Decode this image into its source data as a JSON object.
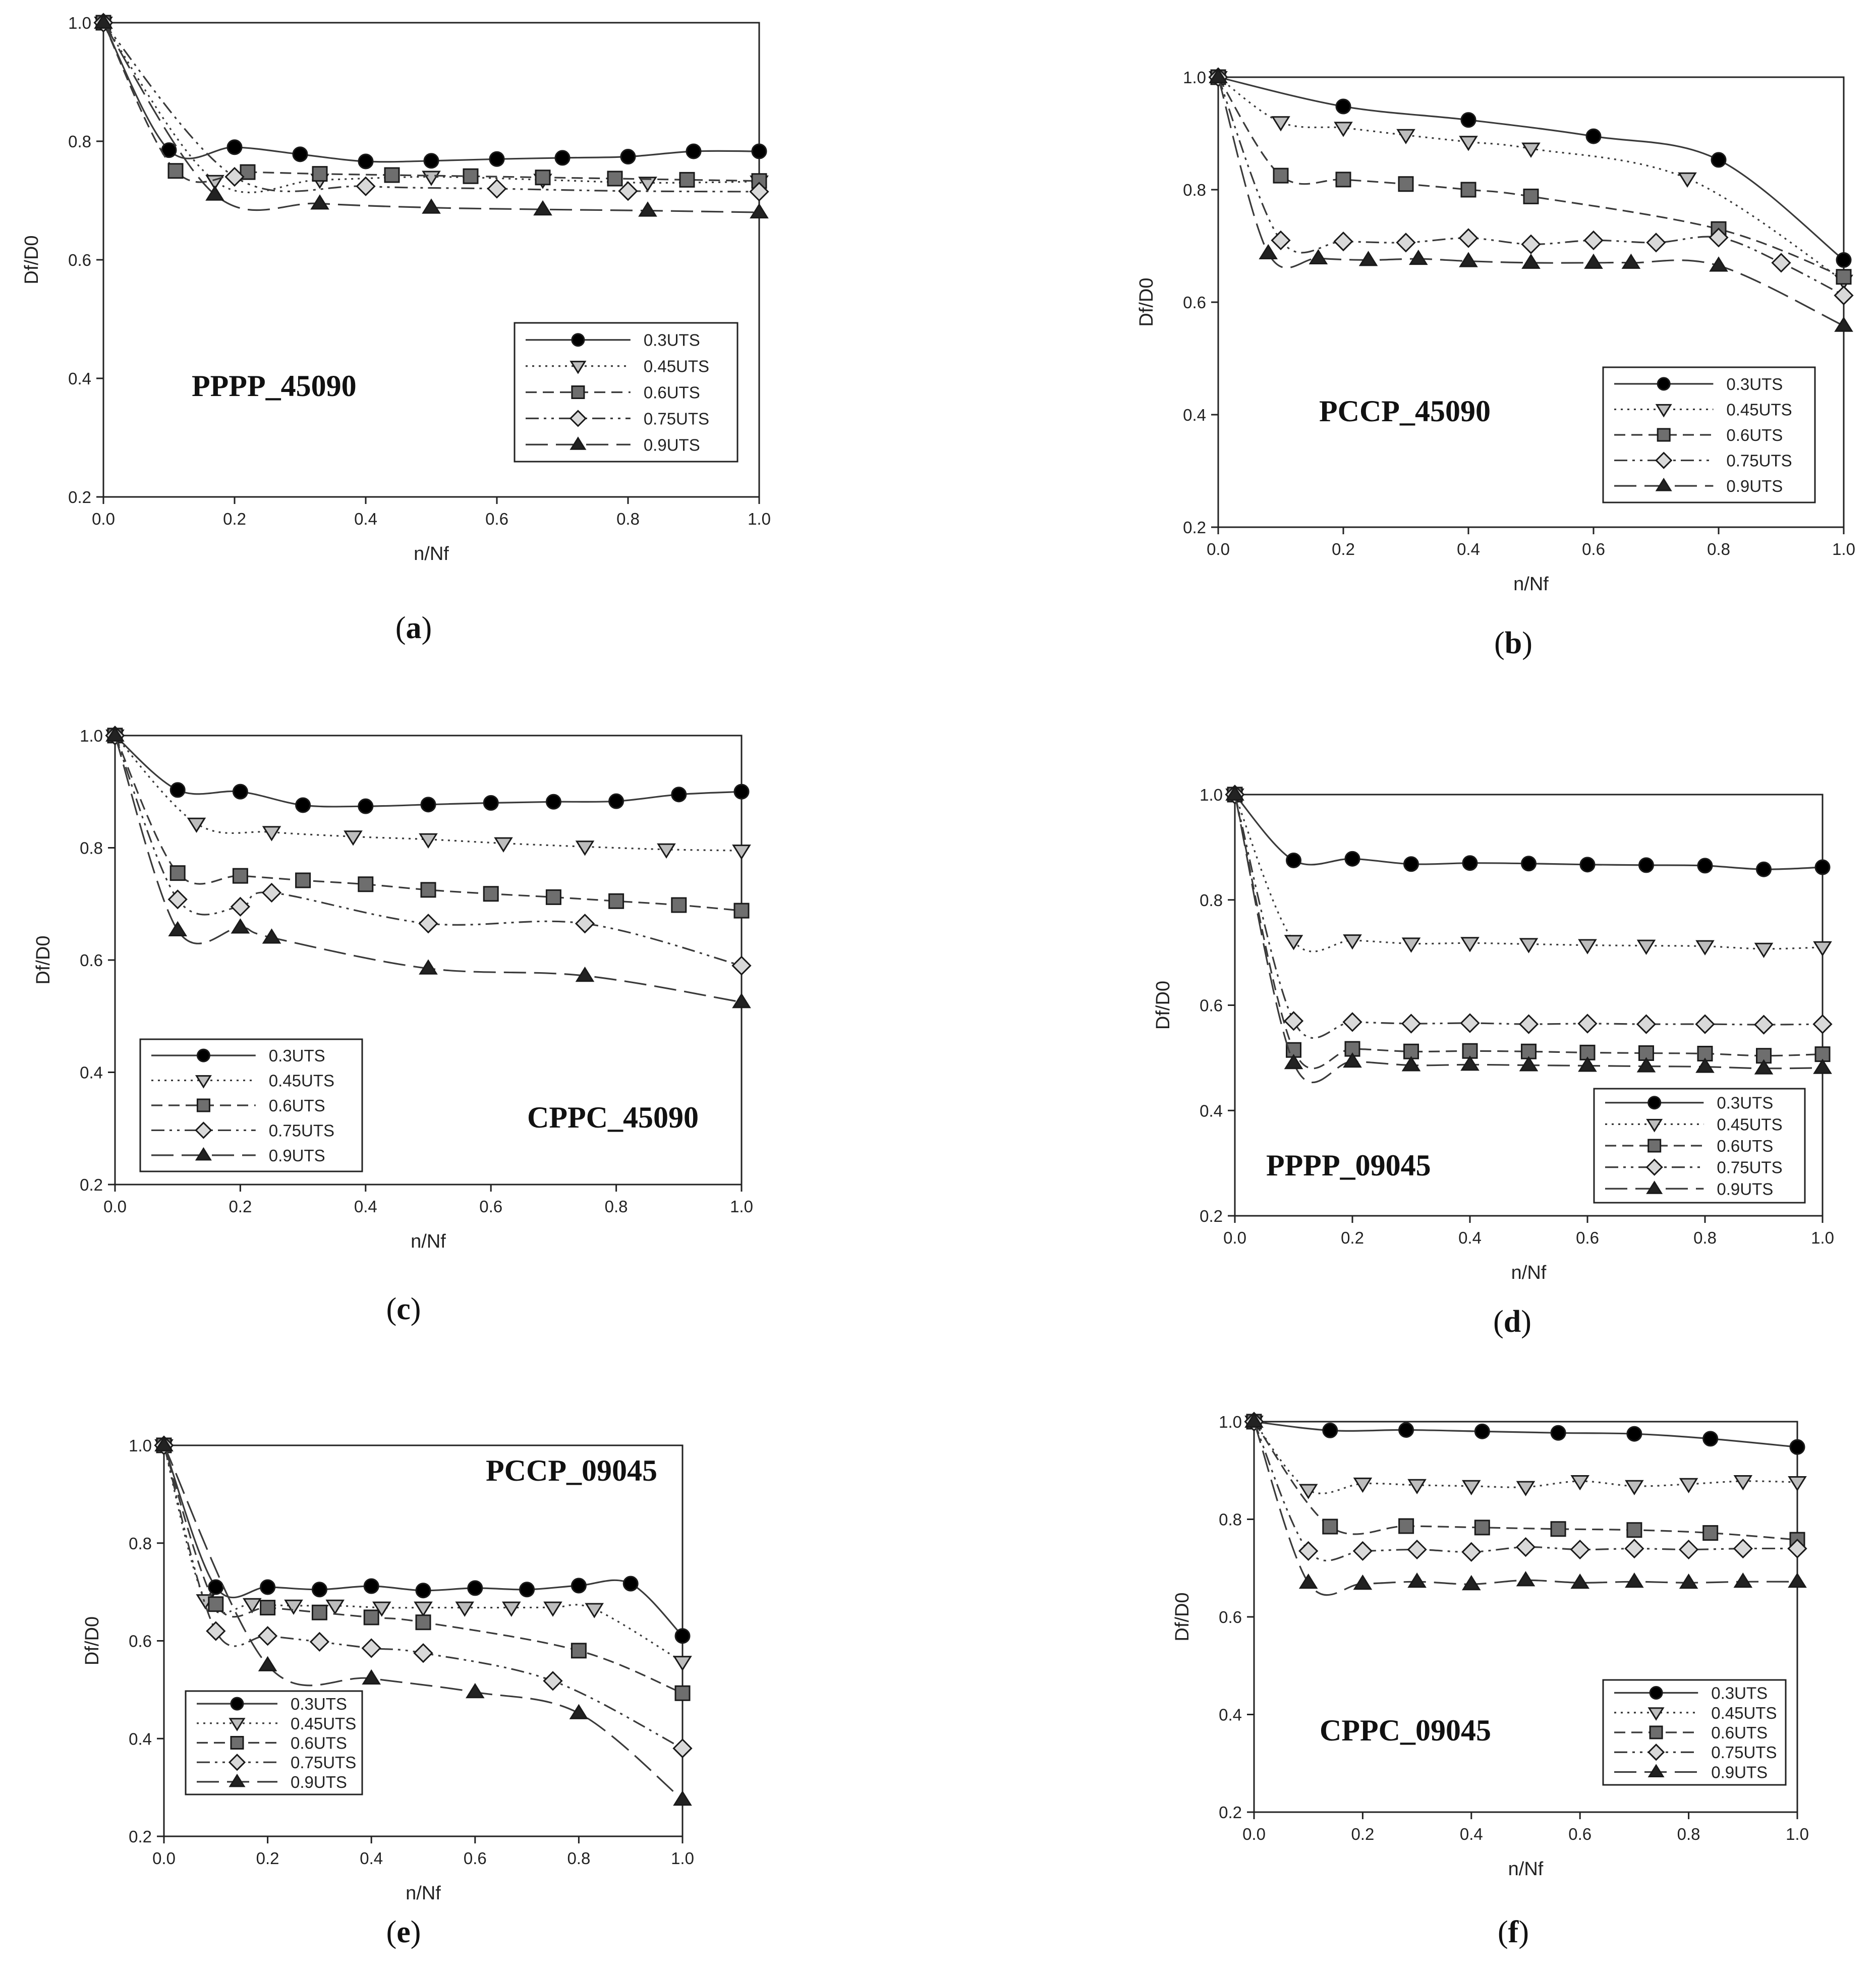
{
  "chart_data": [
    {
      "type": "line",
      "panel": "a",
      "caption": "a",
      "title": "PPPP_45090",
      "xlabel": "n/Nf",
      "ylabel": "Df/D0",
      "xlim": [
        0.0,
        1.0
      ],
      "ylim": [
        0.2,
        1.0
      ],
      "xticks": [
        "0.0",
        "0.2",
        "0.4",
        "0.6",
        "0.8",
        "1.0"
      ],
      "yticks": [
        "0.2",
        "0.4",
        "0.6",
        "0.8",
        "1.0"
      ],
      "legend_position": "right, middle",
      "title_position": "left, middle",
      "series": [
        {
          "name": "0.3UTS",
          "x": [
            0,
            0.1,
            0.2,
            0.3,
            0.4,
            0.5,
            0.6,
            0.7,
            0.8,
            0.9,
            1.0
          ],
          "y": [
            1.0,
            0.785,
            0.79,
            0.778,
            0.766,
            0.767,
            0.77,
            0.772,
            0.774,
            0.783,
            0.783
          ]
        },
        {
          "name": "0.45UTS",
          "x": [
            0,
            0.17,
            0.33,
            0.5,
            0.67,
            0.83,
            1.0
          ],
          "y": [
            1.0,
            0.733,
            0.735,
            0.74,
            0.735,
            0.73,
            0.732
          ]
        },
        {
          "name": "0.6UTS",
          "x": [
            0,
            0.11,
            0.22,
            0.33,
            0.44,
            0.56,
            0.67,
            0.78,
            0.89,
            1.0
          ],
          "y": [
            1.0,
            0.75,
            0.748,
            0.745,
            0.743,
            0.741,
            0.739,
            0.737,
            0.735,
            0.733
          ]
        },
        {
          "name": "0.75UTS",
          "x": [
            0,
            0.2,
            0.4,
            0.6,
            0.8,
            1.0
          ],
          "y": [
            1.0,
            0.74,
            0.724,
            0.72,
            0.716,
            0.715
          ]
        },
        {
          "name": "0.9UTS",
          "x": [
            0,
            0.17,
            0.33,
            0.5,
            0.67,
            0.83,
            1.0
          ],
          "y": [
            1.0,
            0.71,
            0.695,
            0.688,
            0.685,
            0.683,
            0.68
          ]
        }
      ]
    },
    {
      "type": "line",
      "panel": "b",
      "caption": "b",
      "title": "PCCP_45090",
      "xlabel": "n/Nf",
      "ylabel": "Df/D0",
      "xlim": [
        0.0,
        1.0
      ],
      "ylim": [
        0.2,
        1.0
      ],
      "xticks": [
        "0.0",
        "0.2",
        "0.4",
        "0.6",
        "0.8",
        "1.0"
      ],
      "yticks": [
        "0.2",
        "0.4",
        "0.6",
        "0.8",
        "1.0"
      ],
      "legend_position": "right, middle",
      "title_position": "left, middle",
      "series": [
        {
          "name": "0.3UTS",
          "x": [
            0,
            0.2,
            0.4,
            0.6,
            0.8,
            1.0
          ],
          "y": [
            1.0,
            0.948,
            0.924,
            0.895,
            0.853,
            0.675
          ]
        },
        {
          "name": "0.45UTS",
          "x": [
            0,
            0.1,
            0.2,
            0.3,
            0.4,
            0.5,
            0.75,
            1.0
          ],
          "y": [
            1.0,
            0.92,
            0.91,
            0.897,
            0.885,
            0.873,
            0.82,
            0.638
          ]
        },
        {
          "name": "0.6UTS",
          "x": [
            0,
            0.1,
            0.2,
            0.3,
            0.4,
            0.5,
            0.8,
            1.0
          ],
          "y": [
            1.0,
            0.825,
            0.818,
            0.81,
            0.8,
            0.788,
            0.73,
            0.645
          ]
        },
        {
          "name": "0.75UTS",
          "x": [
            0,
            0.1,
            0.2,
            0.3,
            0.4,
            0.5,
            0.6,
            0.7,
            0.8,
            0.9,
            1.0
          ],
          "y": [
            1.0,
            0.71,
            0.708,
            0.706,
            0.714,
            0.703,
            0.71,
            0.706,
            0.715,
            0.67,
            0.612
          ]
        },
        {
          "name": "0.9UTS",
          "x": [
            0,
            0.08,
            0.16,
            0.24,
            0.32,
            0.4,
            0.5,
            0.6,
            0.66,
            0.8,
            1.0
          ],
          "y": [
            1.0,
            0.687,
            0.678,
            0.675,
            0.677,
            0.673,
            0.67,
            0.67,
            0.67,
            0.665,
            0.558
          ]
        }
      ]
    },
    {
      "type": "line",
      "panel": "c",
      "caption": "c",
      "title": "CPPC_45090",
      "xlabel": "n/Nf",
      "ylabel": "Df/D0",
      "xlim": [
        0.0,
        1.0
      ],
      "ylim": [
        0.2,
        1.0
      ],
      "xticks": [
        "0.0",
        "0.2",
        "0.4",
        "0.6",
        "0.8",
        "1.0"
      ],
      "yticks": [
        "0.2",
        "0.4",
        "0.6",
        "0.8",
        "1.0"
      ],
      "legend_position": "left, bottom",
      "title_position": "right, bottom",
      "series": [
        {
          "name": "0.3UTS",
          "x": [
            0,
            0.1,
            0.2,
            0.3,
            0.4,
            0.5,
            0.6,
            0.7,
            0.8,
            0.9,
            1.0
          ],
          "y": [
            1.0,
            0.903,
            0.9,
            0.876,
            0.874,
            0.877,
            0.88,
            0.882,
            0.883,
            0.895,
            0.9
          ]
        },
        {
          "name": "0.45UTS",
          "x": [
            0,
            0.13,
            0.25,
            0.38,
            0.5,
            0.62,
            0.75,
            0.88,
            1.0
          ],
          "y": [
            1.0,
            0.843,
            0.828,
            0.82,
            0.815,
            0.808,
            0.802,
            0.797,
            0.795
          ]
        },
        {
          "name": "0.6UTS",
          "x": [
            0,
            0.1,
            0.2,
            0.3,
            0.4,
            0.5,
            0.6,
            0.7,
            0.8,
            0.9,
            1.0
          ],
          "y": [
            1.0,
            0.755,
            0.75,
            0.742,
            0.735,
            0.725,
            0.718,
            0.712,
            0.705,
            0.698,
            0.688
          ]
        },
        {
          "name": "0.75UTS",
          "x": [
            0,
            0.1,
            0.2,
            0.25,
            0.5,
            0.75,
            1.0
          ],
          "y": [
            1.0,
            0.708,
            0.695,
            0.72,
            0.665,
            0.665,
            0.59
          ]
        },
        {
          "name": "0.9UTS",
          "x": [
            0,
            0.1,
            0.2,
            0.25,
            0.5,
            0.75,
            1.0
          ],
          "y": [
            1.0,
            0.653,
            0.658,
            0.64,
            0.585,
            0.572,
            0.525
          ]
        }
      ]
    },
    {
      "type": "line",
      "panel": "d",
      "caption": "d",
      "title": "PPPP_09045",
      "xlabel": "n/Nf",
      "ylabel": "Df/D0",
      "xlim": [
        0.0,
        1.0
      ],
      "ylim": [
        0.2,
        1.0
      ],
      "xticks": [
        "0.0",
        "0.2",
        "0.4",
        "0.6",
        "0.8",
        "1.0"
      ],
      "yticks": [
        "0.2",
        "0.4",
        "0.6",
        "0.8",
        "1.0"
      ],
      "legend_position": "right, bottom",
      "title_position": "left, bottom",
      "series": [
        {
          "name": "0.3UTS",
          "x": [
            0,
            0.1,
            0.2,
            0.3,
            0.4,
            0.5,
            0.6,
            0.7,
            0.8,
            0.9,
            1.0
          ],
          "y": [
            1.0,
            0.875,
            0.878,
            0.868,
            0.87,
            0.869,
            0.867,
            0.866,
            0.865,
            0.858,
            0.862
          ]
        },
        {
          "name": "0.45UTS",
          "x": [
            0,
            0.1,
            0.2,
            0.3,
            0.4,
            0.5,
            0.6,
            0.7,
            0.8,
            0.9,
            1.0
          ],
          "y": [
            1.0,
            0.722,
            0.723,
            0.717,
            0.718,
            0.716,
            0.714,
            0.713,
            0.712,
            0.707,
            0.71
          ]
        },
        {
          "name": "0.6UTS",
          "x": [
            0,
            0.1,
            0.2,
            0.3,
            0.4,
            0.5,
            0.6,
            0.7,
            0.8,
            0.9,
            1.0
          ],
          "y": [
            1.0,
            0.515,
            0.517,
            0.512,
            0.513,
            0.512,
            0.51,
            0.509,
            0.508,
            0.504,
            0.507
          ]
        },
        {
          "name": "0.75UTS",
          "x": [
            0,
            0.1,
            0.2,
            0.3,
            0.4,
            0.5,
            0.6,
            0.7,
            0.8,
            0.9,
            1.0
          ],
          "y": [
            1.0,
            0.57,
            0.568,
            0.565,
            0.566,
            0.564,
            0.565,
            0.564,
            0.564,
            0.563,
            0.564
          ]
        },
        {
          "name": "0.9UTS",
          "x": [
            0,
            0.1,
            0.2,
            0.3,
            0.4,
            0.5,
            0.6,
            0.7,
            0.8,
            0.9,
            1.0
          ],
          "y": [
            1.0,
            0.49,
            0.493,
            0.486,
            0.487,
            0.486,
            0.485,
            0.484,
            0.483,
            0.48,
            0.481
          ]
        }
      ]
    },
    {
      "type": "line",
      "panel": "e",
      "caption": "e",
      "title": "PCCP_09045",
      "xlabel": "n/Nf",
      "ylabel": "Df/D0",
      "xlim": [
        0.0,
        1.0
      ],
      "ylim": [
        0.2,
        1.0
      ],
      "xticks": [
        "0.0",
        "0.2",
        "0.4",
        "0.6",
        "0.8",
        "1.0"
      ],
      "yticks": [
        "0.2",
        "0.4",
        "0.6",
        "0.8",
        "1.0"
      ],
      "legend_position": "left, bottom",
      "title_position": "right, top",
      "series": [
        {
          "name": "0.3UTS",
          "x": [
            0,
            0.1,
            0.2,
            0.3,
            0.4,
            0.5,
            0.6,
            0.7,
            0.8,
            0.9,
            1.0
          ],
          "y": [
            1.0,
            0.71,
            0.71,
            0.705,
            0.712,
            0.703,
            0.708,
            0.705,
            0.713,
            0.717,
            0.61
          ]
        },
        {
          "name": "0.45UTS",
          "x": [
            0,
            0.08,
            0.17,
            0.25,
            0.33,
            0.42,
            0.5,
            0.58,
            0.67,
            0.75,
            0.83,
            1.0
          ],
          "y": [
            1.0,
            0.683,
            0.675,
            0.672,
            0.672,
            0.668,
            0.668,
            0.668,
            0.668,
            0.668,
            0.665,
            0.557
          ]
        },
        {
          "name": "0.6UTS",
          "x": [
            0,
            0.1,
            0.2,
            0.3,
            0.4,
            0.5,
            0.8,
            1.0
          ],
          "y": [
            1.0,
            0.675,
            0.668,
            0.658,
            0.648,
            0.638,
            0.58,
            0.493
          ]
        },
        {
          "name": "0.75UTS",
          "x": [
            0,
            0.1,
            0.2,
            0.3,
            0.4,
            0.5,
            0.75,
            1.0
          ],
          "y": [
            1.0,
            0.62,
            0.61,
            0.598,
            0.585,
            0.575,
            0.518,
            0.38
          ]
        },
        {
          "name": "0.9UTS",
          "x": [
            0,
            0.2,
            0.4,
            0.6,
            0.8,
            1.0
          ],
          "y": [
            1.0,
            0.55,
            0.523,
            0.495,
            0.452,
            0.275
          ]
        }
      ]
    },
    {
      "type": "line",
      "panel": "f",
      "caption": "f",
      "title": "CPPC_09045",
      "xlabel": "n/Nf",
      "ylabel": "Df/D0",
      "xlim": [
        0.0,
        1.0
      ],
      "ylim": [
        0.2,
        1.0
      ],
      "xticks": [
        "0.0",
        "0.2",
        "0.4",
        "0.6",
        "0.8",
        "1.0"
      ],
      "yticks": [
        "0.2",
        "0.4",
        "0.6",
        "0.8",
        "1.0"
      ],
      "legend_position": "right, bottom",
      "title_position": "left, bottom",
      "series": [
        {
          "name": "0.3UTS",
          "x": [
            0,
            0.14,
            0.28,
            0.42,
            0.56,
            0.7,
            0.84,
            1.0
          ],
          "y": [
            1.0,
            0.982,
            0.983,
            0.98,
            0.977,
            0.975,
            0.965,
            0.948
          ]
        },
        {
          "name": "0.45UTS",
          "x": [
            0,
            0.1,
            0.2,
            0.3,
            0.4,
            0.5,
            0.6,
            0.7,
            0.8,
            0.9,
            1.0
          ],
          "y": [
            1.0,
            0.86,
            0.873,
            0.87,
            0.868,
            0.866,
            0.878,
            0.868,
            0.872,
            0.878,
            0.876
          ]
        },
        {
          "name": "0.6UTS",
          "x": [
            0,
            0.14,
            0.28,
            0.42,
            0.56,
            0.7,
            0.84,
            1.0
          ],
          "y": [
            1.0,
            0.785,
            0.786,
            0.783,
            0.78,
            0.778,
            0.772,
            0.758
          ]
        },
        {
          "name": "0.75UTS",
          "x": [
            0,
            0.1,
            0.2,
            0.3,
            0.4,
            0.5,
            0.6,
            0.7,
            0.8,
            0.9,
            1.0
          ],
          "y": [
            1.0,
            0.735,
            0.735,
            0.738,
            0.733,
            0.743,
            0.738,
            0.74,
            0.738,
            0.74,
            0.74
          ]
        },
        {
          "name": "0.9UTS",
          "x": [
            0,
            0.1,
            0.2,
            0.3,
            0.4,
            0.5,
            0.6,
            0.7,
            0.8,
            0.9,
            1.0
          ],
          "y": [
            1.0,
            0.67,
            0.668,
            0.672,
            0.667,
            0.675,
            0.67,
            0.672,
            0.67,
            0.672,
            0.672
          ]
        }
      ]
    }
  ],
  "series_styles": [
    {
      "name": "0.3UTS",
      "marker": "circle",
      "marker_fill": "#000000",
      "line": "solid"
    },
    {
      "name": "0.45UTS",
      "marker": "triangle-down",
      "marker_fill": "#bdbdbd",
      "line": "dotted"
    },
    {
      "name": "0.6UTS",
      "marker": "square",
      "marker_fill": "#6e6e6e",
      "line": "dashed"
    },
    {
      "name": "0.75UTS",
      "marker": "diamond",
      "marker_fill": "#d9d9d9",
      "line": "dash-dot-dot"
    },
    {
      "name": "0.9UTS",
      "marker": "triangle-up",
      "marker_fill": "#222222",
      "line": "long-dash"
    }
  ],
  "colors": {
    "line": "#3a3a3a",
    "axis": "#222222",
    "background": "#ffffff"
  }
}
